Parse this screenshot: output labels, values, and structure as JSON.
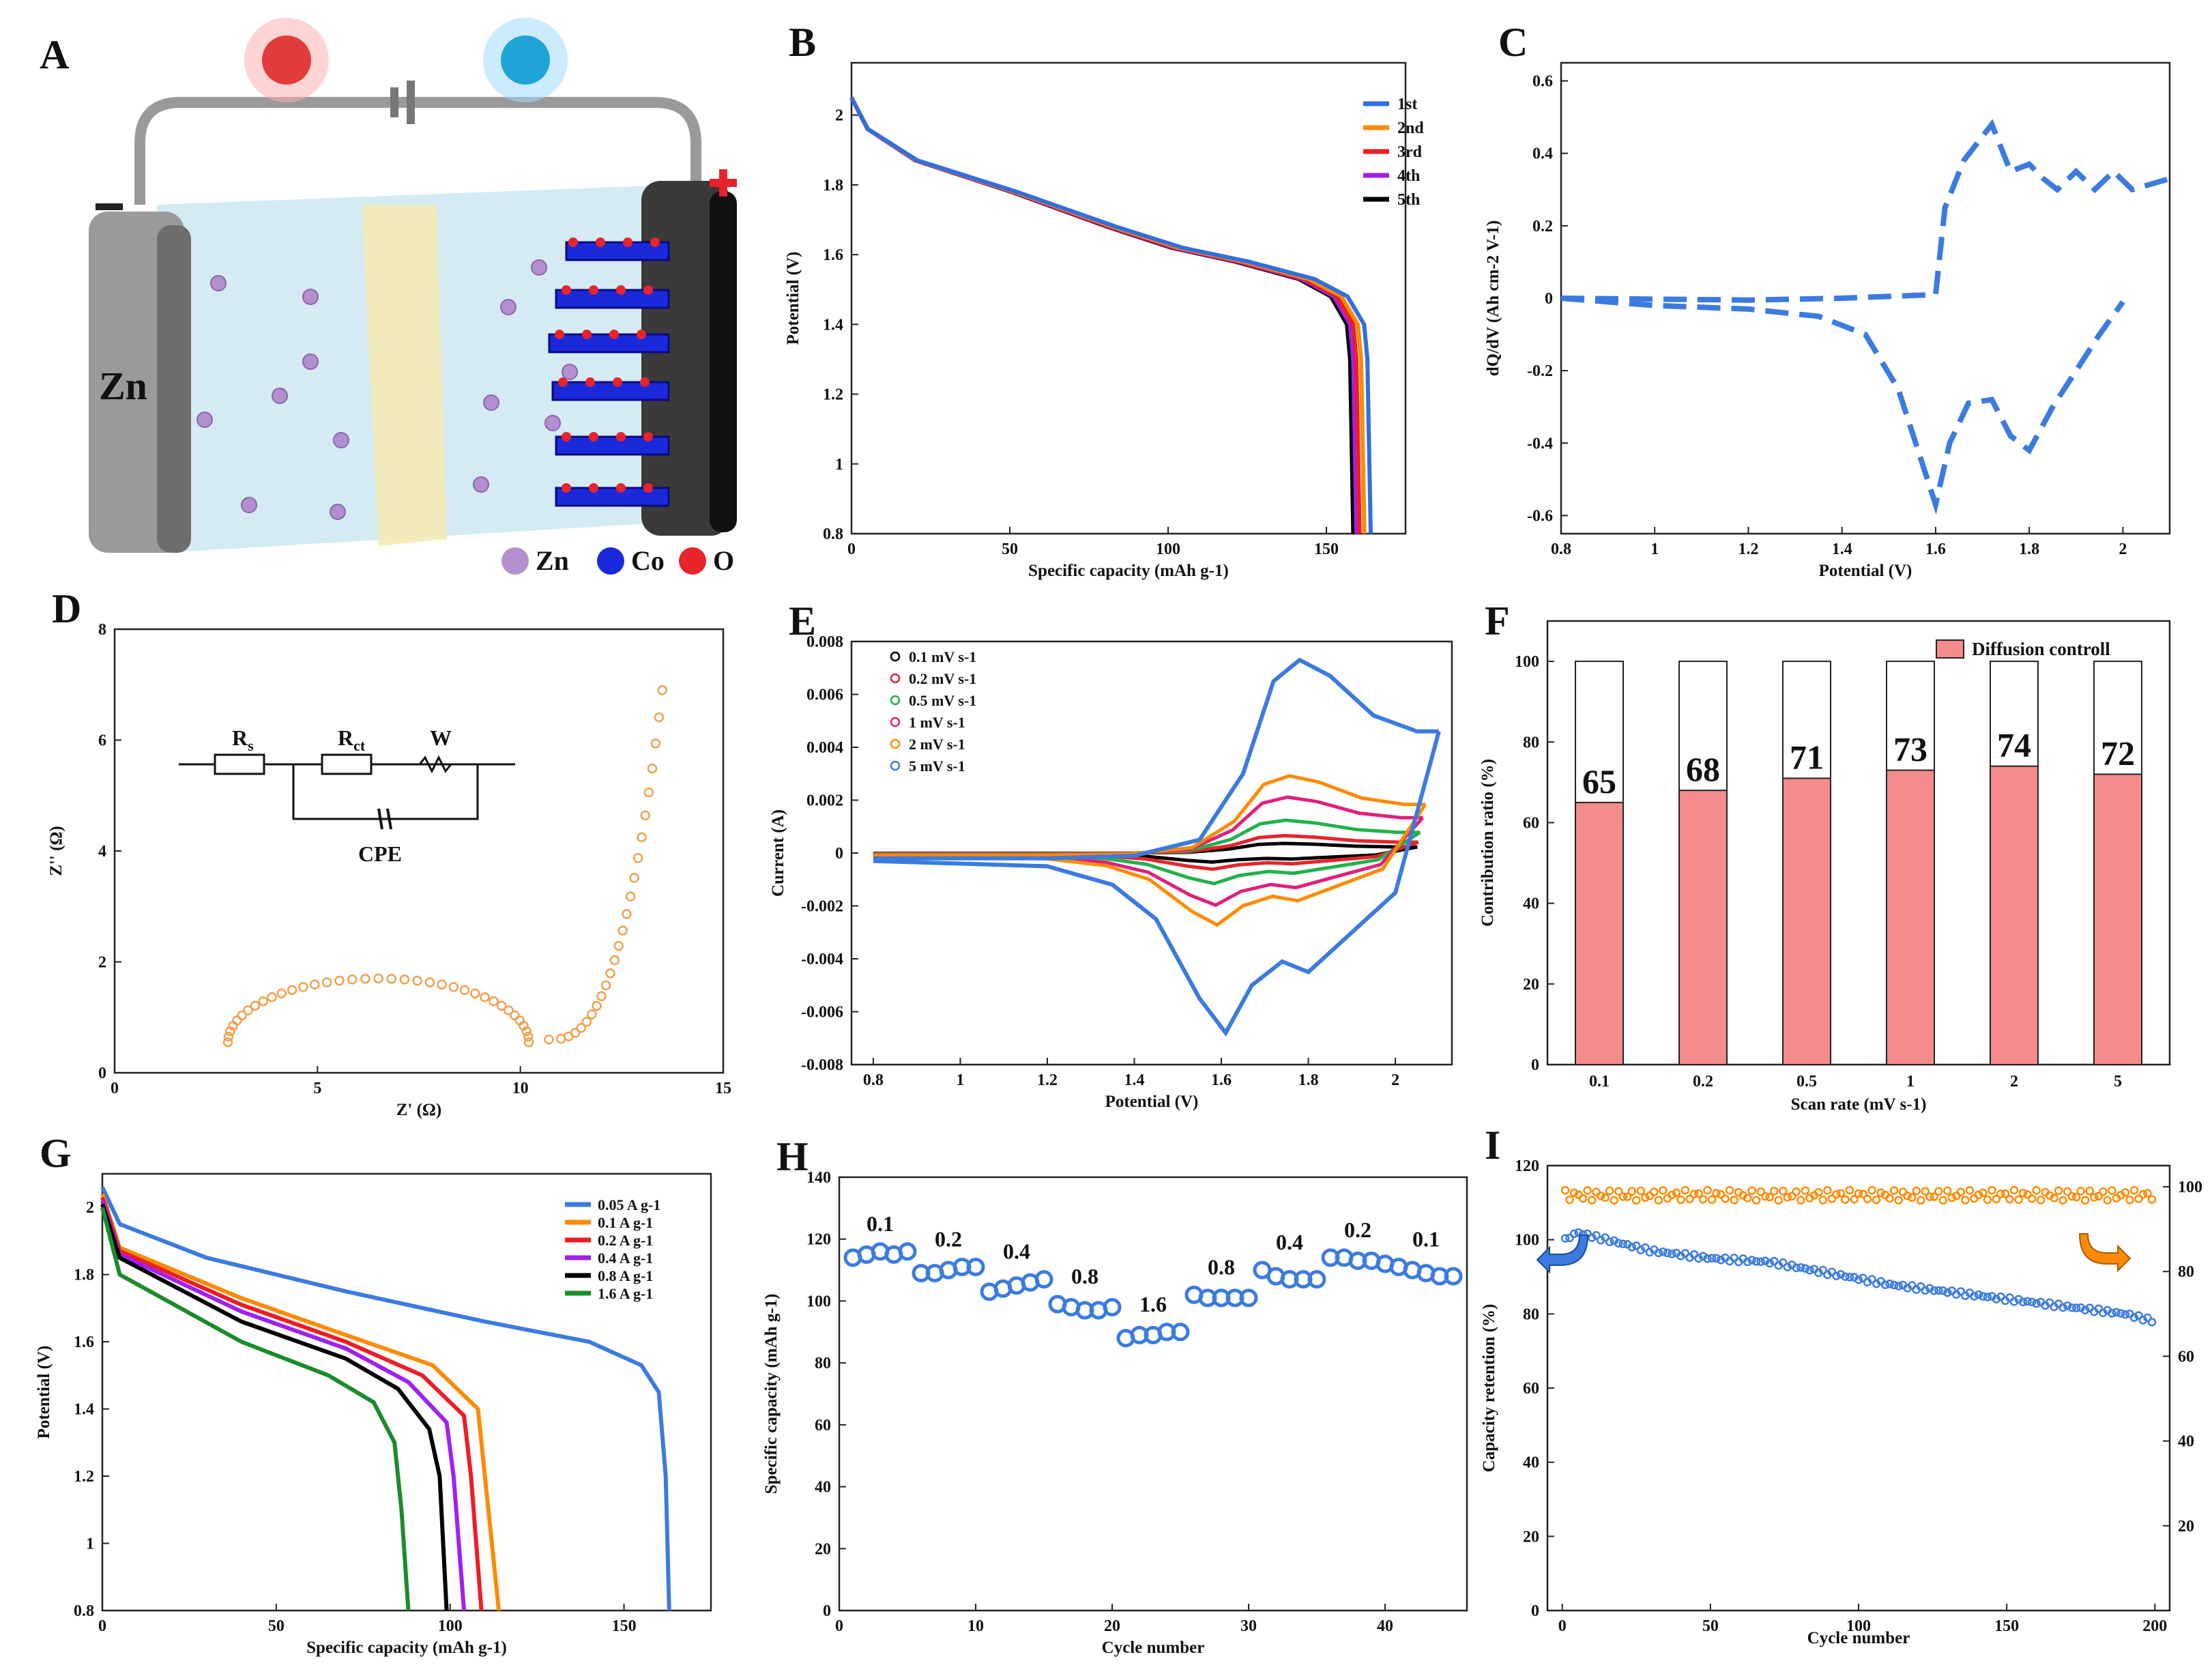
{
  "panels": {
    "A": {
      "label": "A",
      "zn_label": "Zn",
      "legend": [
        "Zn",
        "Co",
        "O"
      ],
      "colors": {
        "zn": "#b48fd0",
        "co": "#1a2adb",
        "o": "#e8232a"
      }
    }
  },
  "chart_data": [
    {
      "id": "B",
      "label": "B",
      "type": "line",
      "xlabel": "Specific capacity (mAh g-1)",
      "ylabel": "Potential (V)",
      "xlim": [
        0,
        175
      ],
      "ylim": [
        0.8,
        2.15
      ],
      "xticks": [
        "0",
        "50",
        "100",
        "150"
      ],
      "yticks": [
        "0.8",
        "1",
        "1.2",
        "1.4",
        "1.6",
        "1.8",
        "2"
      ],
      "series": [
        {
          "name": "1st",
          "color": "#2f6fe0",
          "end": 164
        },
        {
          "name": "2nd",
          "color": "#ff8a00",
          "end": 162
        },
        {
          "name": "3rd",
          "color": "#ee1c25",
          "end": 160.5
        },
        {
          "name": "4th",
          "color": "#a020f0",
          "end": 159.5
        },
        {
          "name": "5th",
          "color": "#000000",
          "end": 158.5
        }
      ],
      "shape": [
        [
          0,
          2.05
        ],
        [
          5,
          1.96
        ],
        [
          20,
          1.87
        ],
        [
          50,
          1.78
        ],
        [
          80,
          1.68
        ],
        [
          100,
          1.62
        ],
        [
          120,
          1.58
        ],
        [
          140,
          1.53
        ],
        [
          150,
          1.48
        ],
        [
          155,
          1.4
        ],
        [
          156,
          1.3
        ],
        [
          157,
          0.8
        ]
      ]
    },
    {
      "id": "C",
      "label": "C",
      "type": "line",
      "xlabel": "Potential (V)",
      "ylabel": "dQ/dV (Ah cm-2 V-1)",
      "xlim": [
        0.8,
        2.1
      ],
      "ylim": [
        -0.65,
        0.65
      ],
      "xticks": [
        "0.8",
        "1",
        "1.2",
        "1.4",
        "1.6",
        "1.8",
        "2"
      ],
      "yticks": [
        "-0.6",
        "-0.4",
        "-0.2",
        "0",
        "0.2",
        "0.4",
        "0.6"
      ],
      "color": "#3b7be0",
      "upper": [
        [
          0.8,
          0
        ],
        [
          1.2,
          -0.005
        ],
        [
          1.4,
          0
        ],
        [
          1.6,
          0.01
        ],
        [
          1.62,
          0.25
        ],
        [
          1.66,
          0.38
        ],
        [
          1.72,
          0.48
        ],
        [
          1.76,
          0.35
        ],
        [
          1.8,
          0.37
        ],
        [
          1.83,
          0.33
        ],
        [
          1.86,
          0.3
        ],
        [
          1.9,
          0.35
        ],
        [
          1.94,
          0.3
        ],
        [
          1.98,
          0.35
        ],
        [
          2.02,
          0.3
        ],
        [
          2.1,
          0.33
        ]
      ],
      "lower": [
        [
          0.8,
          0
        ],
        [
          1.0,
          -0.02
        ],
        [
          1.2,
          -0.03
        ],
        [
          1.35,
          -0.05
        ],
        [
          1.45,
          -0.1
        ],
        [
          1.52,
          -0.25
        ],
        [
          1.57,
          -0.45
        ],
        [
          1.6,
          -0.57
        ],
        [
          1.63,
          -0.4
        ],
        [
          1.67,
          -0.29
        ],
        [
          1.72,
          -0.28
        ],
        [
          1.76,
          -0.38
        ],
        [
          1.8,
          -0.42
        ],
        [
          1.85,
          -0.3
        ],
        [
          1.9,
          -0.2
        ],
        [
          1.95,
          -0.1
        ],
        [
          2.0,
          -0.01
        ]
      ]
    },
    {
      "id": "D",
      "label": "D",
      "type": "scatter",
      "xlabel": "Z' (Ω)",
      "ylabel": "Z'' (Ω)",
      "xlim": [
        0,
        15
      ],
      "ylim": [
        0,
        8
      ],
      "xticks": [
        "0",
        "5",
        "10",
        "15"
      ],
      "yticks": [
        "0",
        "2",
        "4",
        "6",
        "8"
      ],
      "color": "#f0a050",
      "circuit": {
        "rs": "R",
        "rs_sub": "s",
        "rct": "R",
        "rct_sub": "ct",
        "w": "W",
        "cpe": "CPE"
      }
    },
    {
      "id": "E",
      "label": "E",
      "type": "line",
      "xlabel": "Potential (V)",
      "ylabel": "Current (A)",
      "xlim": [
        0.75,
        2.13
      ],
      "ylim": [
        -0.008,
        0.008
      ],
      "xticks": [
        "0.8",
        "1",
        "1.2",
        "1.4",
        "1.6",
        "1.8",
        "2"
      ],
      "yticks": [
        "-0.008",
        "-0.006",
        "-0.004",
        "-0.002",
        "0",
        "0.002",
        "0.004",
        "0.006",
        "0.008"
      ],
      "series": [
        {
          "name": "0.1 mV s-1",
          "color": "#000000",
          "scale": 0.05
        },
        {
          "name": "0.2 mV s-1",
          "color": "#e8232a",
          "scale": 0.09
        },
        {
          "name": "0.5 mV s-1",
          "color": "#22b14c",
          "scale": 0.17
        },
        {
          "name": "1 mV s-1",
          "color": "#e0217a",
          "scale": 0.29
        },
        {
          "name": "2 mV s-1",
          "color": "#ff8a00",
          "scale": 0.4
        },
        {
          "name": "5 mV s-1",
          "color": "#3b7be0",
          "scale": 1.0
        }
      ],
      "upper5": [
        [
          0.8,
          -0.0002
        ],
        [
          1.2,
          -0.0002
        ],
        [
          1.4,
          -0.0001
        ],
        [
          1.55,
          0.0005
        ],
        [
          1.65,
          0.003
        ],
        [
          1.72,
          0.0065
        ],
        [
          1.78,
          0.0073
        ],
        [
          1.85,
          0.0067
        ],
        [
          1.95,
          0.0052
        ],
        [
          2.05,
          0.0046
        ],
        [
          2.1,
          0.0046
        ]
      ],
      "lower5": [
        [
          0.8,
          -0.0003
        ],
        [
          1.2,
          -0.0005
        ],
        [
          1.35,
          -0.0012
        ],
        [
          1.45,
          -0.0025
        ],
        [
          1.55,
          -0.0055
        ],
        [
          1.61,
          -0.0068
        ],
        [
          1.67,
          -0.005
        ],
        [
          1.74,
          -0.0041
        ],
        [
          1.8,
          -0.0045
        ],
        [
          1.9,
          -0.003
        ],
        [
          2.0,
          -0.0015
        ],
        [
          2.1,
          0.0046
        ]
      ]
    },
    {
      "id": "F",
      "label": "F",
      "type": "bar",
      "xlabel": "Scan rate (mV s-1)",
      "ylabel": "Contribution ratio (%)",
      "categories": [
        "0.1",
        "0.2",
        "0.5",
        "1",
        "2",
        "5"
      ],
      "values": [
        65,
        68,
        71,
        73,
        74,
        72
      ],
      "value_labels": [
        "65",
        "68",
        "71",
        "73",
        "74",
        "72"
      ],
      "ylim": [
        0,
        110
      ],
      "yticks": [
        "0",
        "20",
        "40",
        "60",
        "80",
        "100"
      ],
      "legend": "Diffusion controll",
      "color": "#f48c8c"
    },
    {
      "id": "G",
      "label": "G",
      "type": "line",
      "xlabel": "Specific capacity (mAh g-1)",
      "ylabel": "Potential (V)",
      "xlim": [
        0,
        175
      ],
      "ylim": [
        0.8,
        2.1
      ],
      "xticks": [
        "0",
        "50",
        "100",
        "150"
      ],
      "yticks": [
        "0.8",
        "1",
        "1.2",
        "1.4",
        "1.6",
        "1.8",
        "2"
      ],
      "series": [
        {
          "name": "0.05 A g-1",
          "color": "#3b7be0",
          "end": 163
        },
        {
          "name": "0.1 A g-1",
          "color": "#ff8a00",
          "end": 114
        },
        {
          "name": "0.2 A g-1",
          "color": "#ee1c25",
          "end": 109
        },
        {
          "name": "0.4 A g-1",
          "color": "#a020f0",
          "end": 104
        },
        {
          "name": "0.8 A g-1",
          "color": "#000000",
          "end": 99
        },
        {
          "name": "1.6 A g-1",
          "color": "#1a8c2a",
          "end": 88
        }
      ]
    },
    {
      "id": "H",
      "label": "H",
      "type": "scatter",
      "xlabel": "Cycle number",
      "ylabel": "Specific capacity (mAh g-1)",
      "xlim": [
        0,
        46
      ],
      "ylim": [
        0,
        140
      ],
      "xticks": [
        "0",
        "10",
        "20",
        "30",
        "40"
      ],
      "yticks": [
        "0",
        "20",
        "40",
        "60",
        "80",
        "100",
        "120",
        "140"
      ],
      "color": "#3b7be0",
      "groups": [
        {
          "label": "0.1",
          "values": [
            114,
            115,
            116,
            115,
            116
          ]
        },
        {
          "label": "0.2",
          "values": [
            109,
            109,
            110,
            111,
            111
          ]
        },
        {
          "label": "0.4",
          "values": [
            103,
            104,
            105,
            106,
            107
          ]
        },
        {
          "label": "0.8",
          "values": [
            99,
            98,
            97,
            97,
            98
          ]
        },
        {
          "label": "1.6",
          "values": [
            88,
            89,
            89,
            90,
            90
          ]
        },
        {
          "label": "0.8",
          "values": [
            102,
            101,
            101,
            101,
            101
          ]
        },
        {
          "label": "0.4",
          "values": [
            110,
            108,
            107,
            107,
            107
          ]
        },
        {
          "label": "0.2",
          "values": [
            114,
            114,
            113,
            113,
            112
          ]
        },
        {
          "label": "0.1",
          "values": [
            111,
            110,
            109,
            108,
            108
          ]
        }
      ]
    },
    {
      "id": "I",
      "label": "I",
      "type": "scatter",
      "xlabel": "Cycle number",
      "ylabel": "Capacity retention (%)",
      "xlim": [
        -5,
        205
      ],
      "ylim": [
        0,
        120
      ],
      "y2lim": [
        0,
        105
      ],
      "xticks": [
        "0",
        "50",
        "100",
        "150",
        "200"
      ],
      "yticks": [
        "0",
        "20",
        "40",
        "60",
        "80",
        "100",
        "120"
      ],
      "y2ticks": [
        "20",
        "40",
        "60",
        "80",
        "100"
      ],
      "retention": [
        [
          1,
          100
        ],
        [
          5,
          102
        ],
        [
          10,
          101
        ],
        [
          20,
          99
        ],
        [
          30,
          97
        ],
        [
          50,
          95
        ],
        [
          70,
          94
        ],
        [
          90,
          91
        ],
        [
          110,
          88
        ],
        [
          130,
          86
        ],
        [
          150,
          84
        ],
        [
          170,
          82
        ],
        [
          190,
          80
        ],
        [
          200,
          78
        ]
      ],
      "efficiency": 98,
      "colors": {
        "retention": "#3b7be0",
        "efficiency": "#ff8a00"
      }
    }
  ]
}
